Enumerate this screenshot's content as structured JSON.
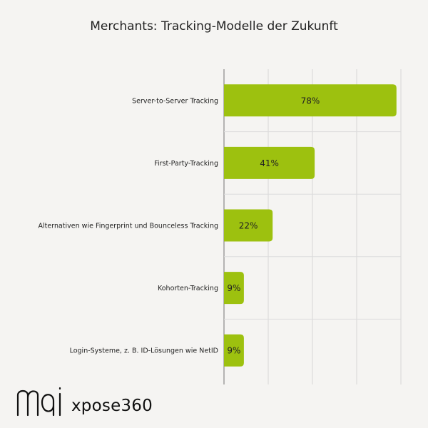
{
  "chart_data": {
    "type": "bar",
    "orientation": "horizontal",
    "title": "Merchants: Tracking-Modelle der Zukunft",
    "categories": [
      "Server-to-Server Tracking",
      "First-Party-Tracking",
      "Alternativen wie Fingerprint und Bounceless Tracking",
      "Kohorten-Tracking",
      "Login-Systeme, z. B. ID-Lösungen wie NetID"
    ],
    "values": [
      78,
      41,
      22,
      9,
      9
    ],
    "value_labels": [
      "78%",
      "41%",
      "22%",
      "9%",
      "9%"
    ],
    "xlim": [
      0,
      80
    ],
    "grid": true,
    "bar_color": "#9dc10f"
  },
  "branding": {
    "logo_text": "mai",
    "partner_name": "xpose360"
  }
}
